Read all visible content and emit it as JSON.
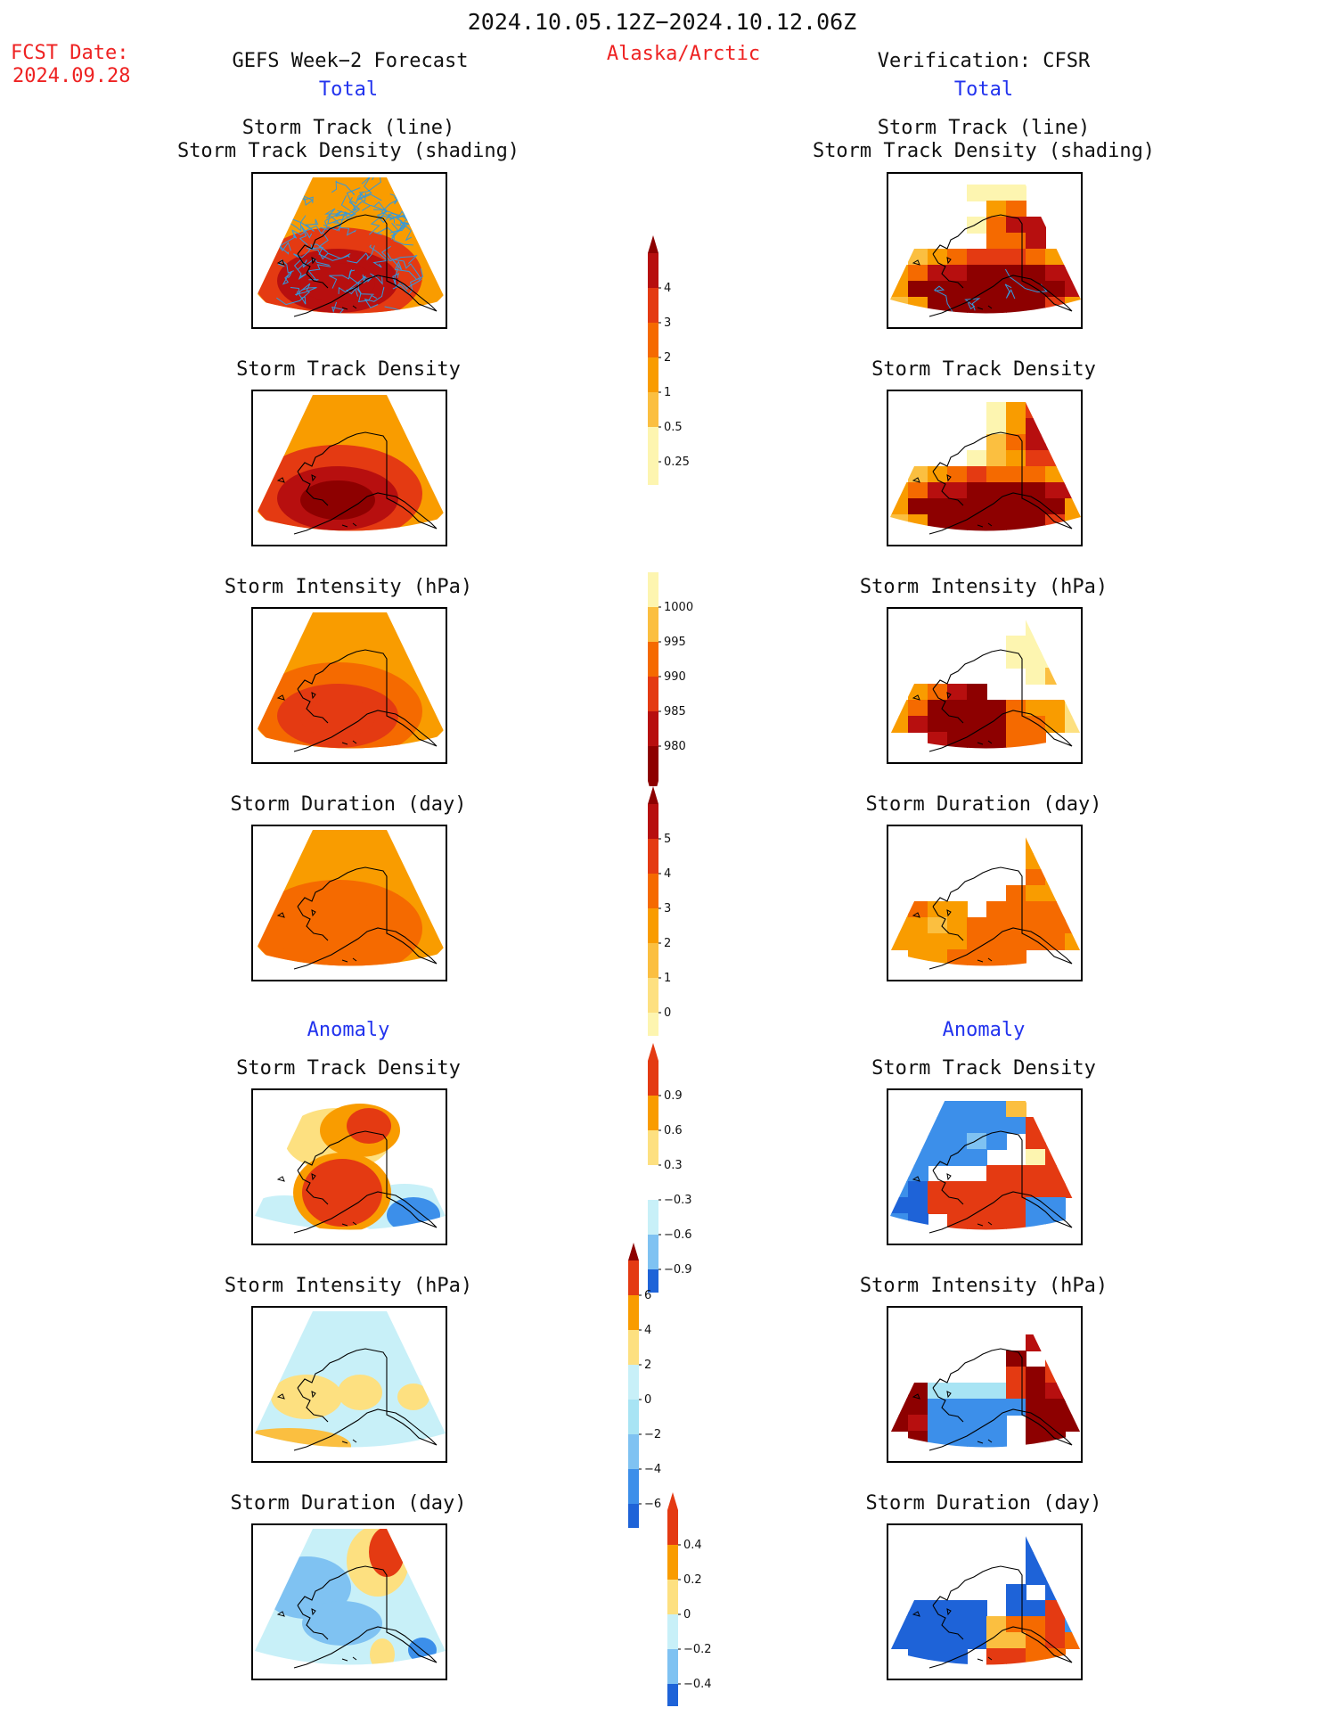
{
  "header": {
    "period": "2024.10.05.12Z−2024.10.12.06Z",
    "region": "Alaska/Arctic",
    "fcst_label": "FCST Date:",
    "fcst_date": "2024.09.28",
    "left_title": "GEFS Week−2 Forecast",
    "right_title": "Verification: CFSR",
    "total_left": "Total",
    "total_right": "Total",
    "anomaly_left": "Anomaly",
    "anomaly_right": "Anomaly"
  },
  "panel_titles": {
    "track_line": "Storm Track (line)",
    "track_density_shading": "Storm Track Density (shading)",
    "track_density": "Storm Track Density",
    "intensity": "Storm Intensity (hPa)",
    "duration": "Storm Duration (day)"
  },
  "colorbars": {
    "density": [
      "4",
      "3",
      "2",
      "1",
      "0.5",
      "0.25"
    ],
    "intensity": [
      "1000",
      "995",
      "990",
      "985",
      "980"
    ],
    "duration": [
      "5",
      "4",
      "3",
      "2",
      "1",
      "0"
    ],
    "anom_density": [
      "0.9",
      "0.6",
      "0.3",
      "−0.3",
      "−0.6",
      "−0.9"
    ],
    "anom_intensity": [
      "6",
      "4",
      "2",
      "0",
      "−2",
      "−4",
      "−6"
    ],
    "anom_duration": [
      "0.4",
      "0.2",
      "0",
      "−0.2",
      "−0.4"
    ]
  },
  "colors": {
    "warm": [
      "#fdf5b0",
      "#fde080",
      "#fbbf40",
      "#f99c00",
      "#f56a00",
      "#e43a12",
      "#b70f0f",
      "#8d0000"
    ],
    "cool": [
      "#c8f0f8",
      "#a8e4f4",
      "#7fc2f2",
      "#3c8fea",
      "#1e63d8"
    ],
    "track_line": "#3399dd",
    "header_red": "#ee2222",
    "header_blue": "#2233ee"
  }
}
